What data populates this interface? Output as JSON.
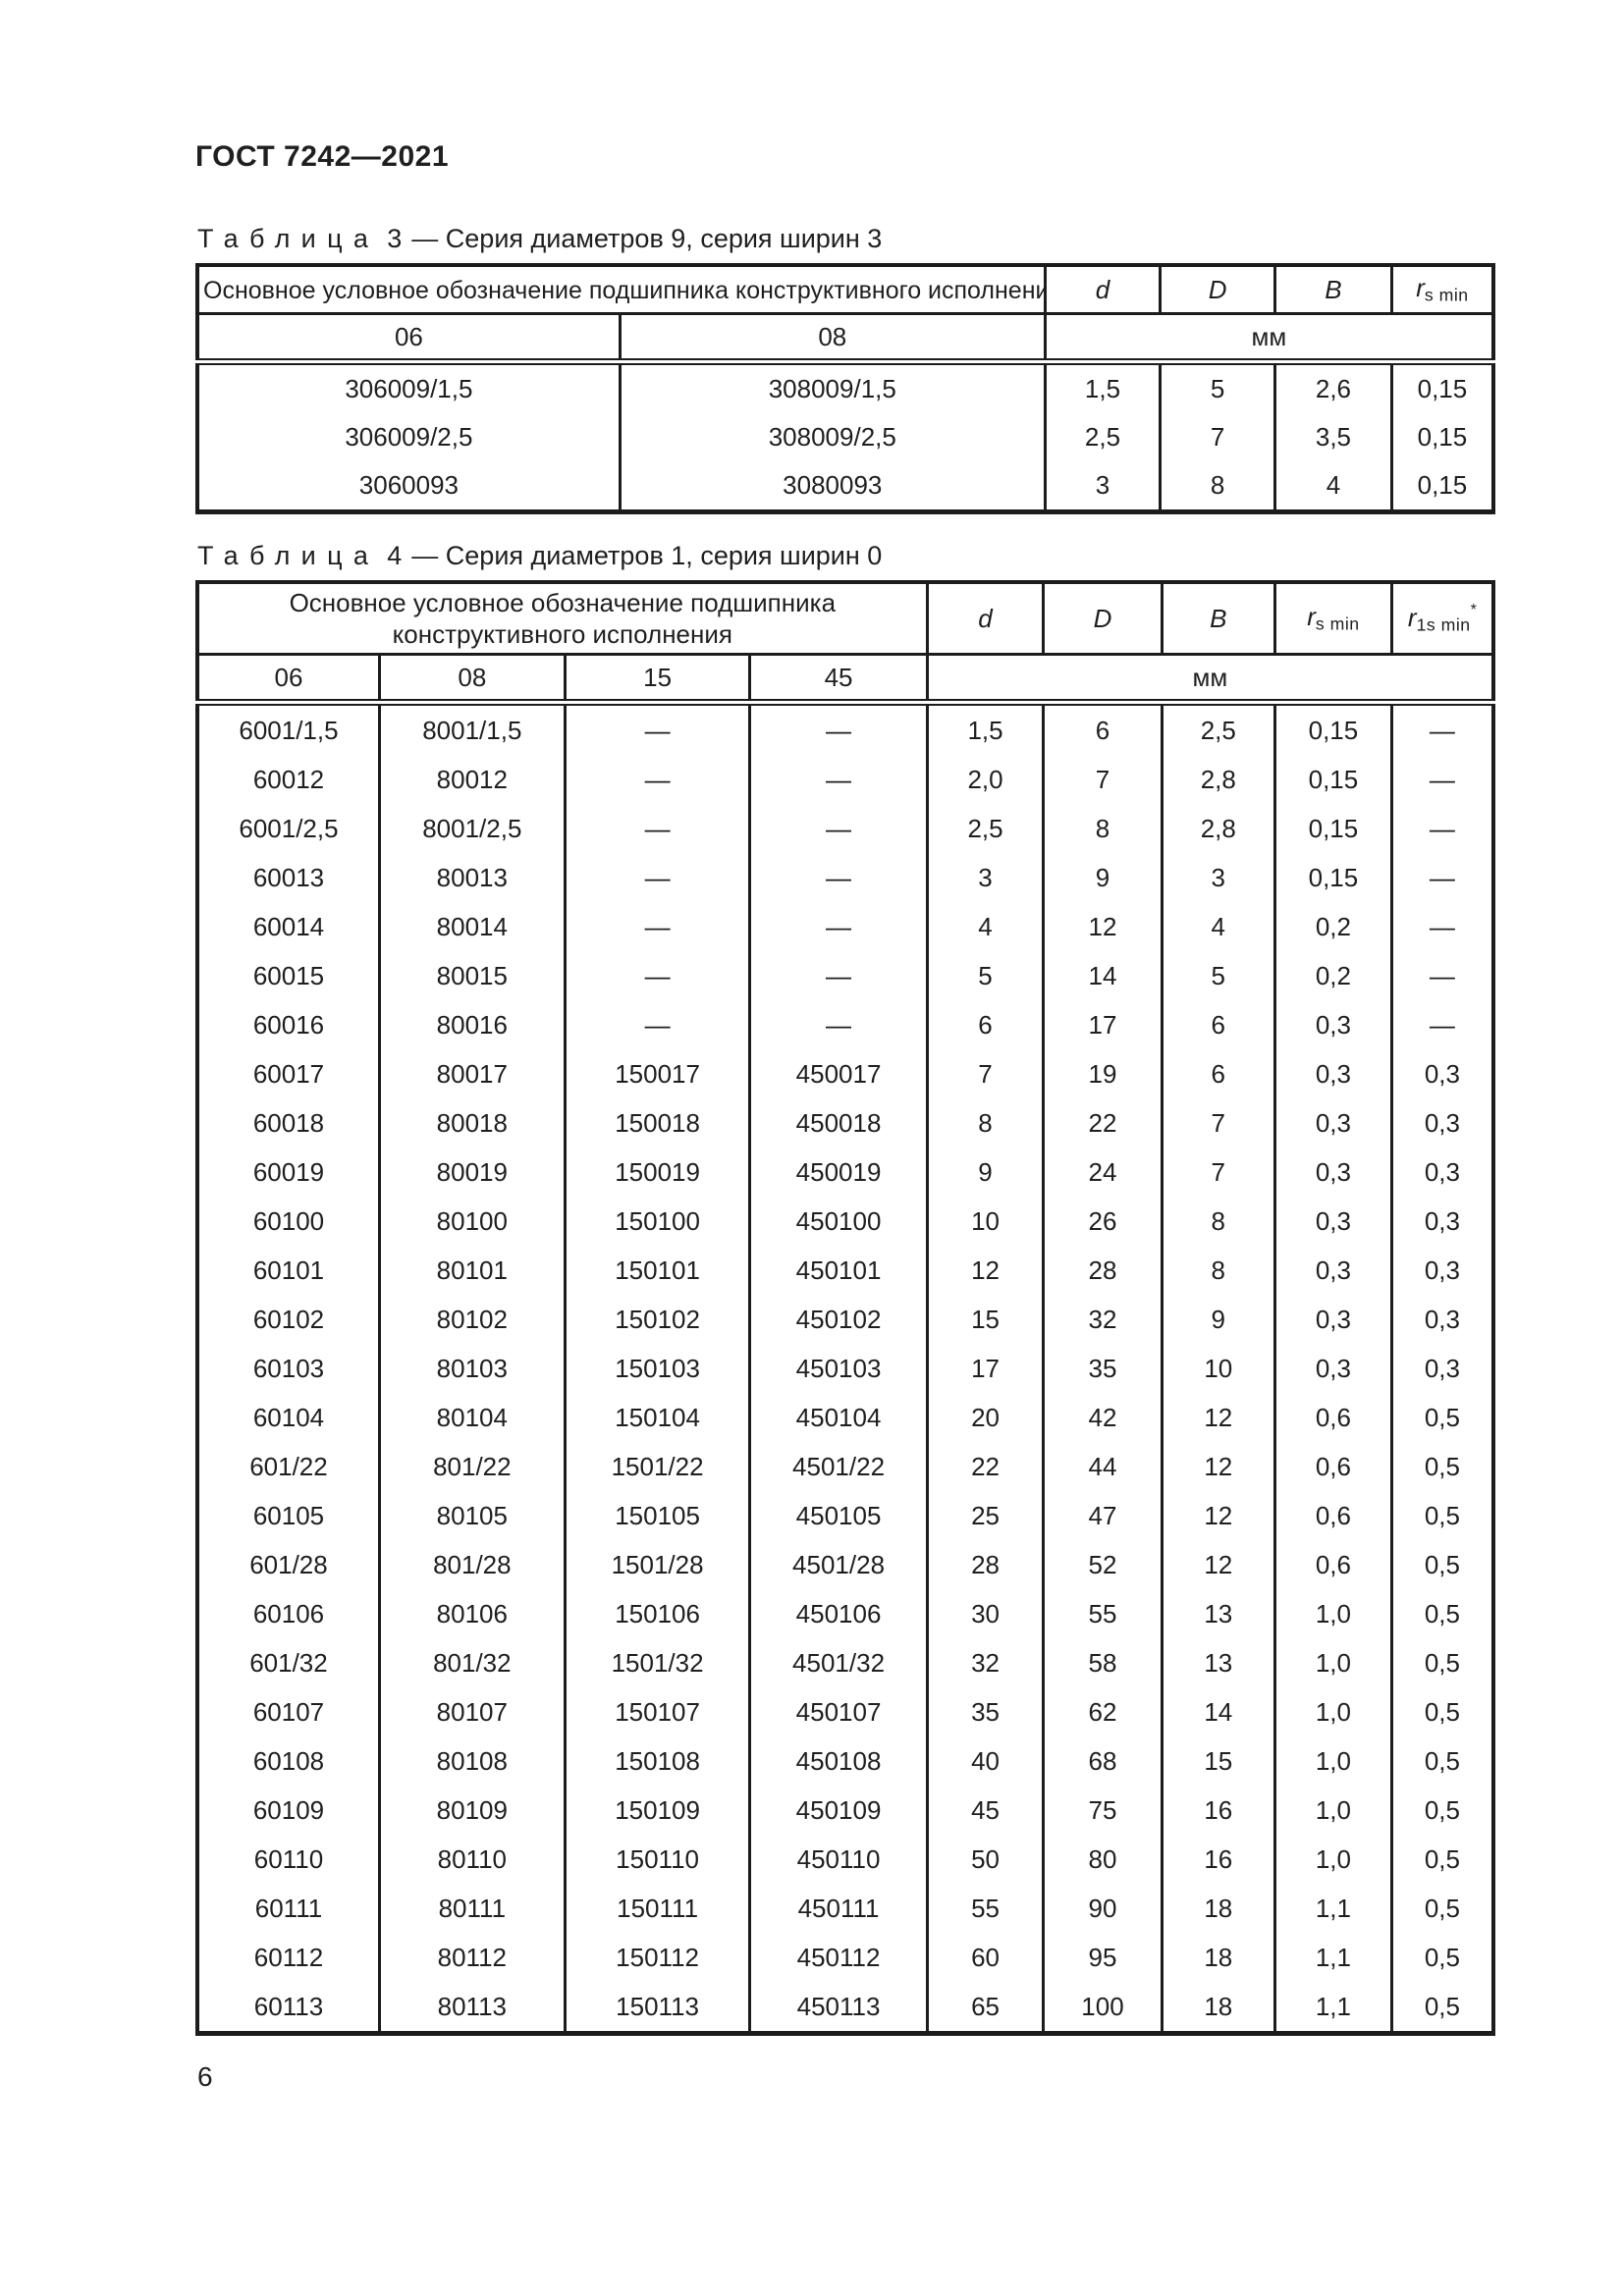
{
  "page": {
    "standard_code": "ГОСТ 7242—2021",
    "page_number": "6"
  },
  "table3": {
    "caption_word": "Таблица",
    "caption_number": "3",
    "caption_text": "— Серия диаметров 9, серия ширин 3",
    "designation_header": "Основное условное обозначение подшипника конструктивного исполнения",
    "series_columns": [
      "06",
      "08"
    ],
    "col_d": "d",
    "col_D": "D",
    "col_B": "B",
    "col_r_base": "r",
    "col_r_sub": "s min",
    "unit": "мм",
    "rows": [
      [
        "306009/1,5",
        "308009/1,5",
        "1,5",
        "5",
        "2,6",
        "0,15"
      ],
      [
        "306009/2,5",
        "308009/2,5",
        "2,5",
        "7",
        "3,5",
        "0,15"
      ],
      [
        "3060093",
        "3080093",
        "3",
        "8",
        "4",
        "0,15"
      ]
    ]
  },
  "table4": {
    "caption_word": "Таблица",
    "caption_number": "4",
    "caption_text": "— Серия диаметров 1, серия ширин 0",
    "designation_header": "Основное условное обозначение подшипника конструктивного исполнения",
    "series_columns": [
      "06",
      "08",
      "15",
      "45"
    ],
    "col_d": "d",
    "col_D": "D",
    "col_B": "B",
    "col_r_base": "r",
    "col_r_sub": "s min",
    "col_r1_base": "r",
    "col_r1_sub": "1s min",
    "col_r1_sup": "*",
    "unit": "мм",
    "rows": [
      [
        "6001/1,5",
        "8001/1,5",
        "—",
        "—",
        "1,5",
        "6",
        "2,5",
        "0,15",
        "—"
      ],
      [
        "60012",
        "80012",
        "—",
        "—",
        "2,0",
        "7",
        "2,8",
        "0,15",
        "—"
      ],
      [
        "6001/2,5",
        "8001/2,5",
        "—",
        "—",
        "2,5",
        "8",
        "2,8",
        "0,15",
        "—"
      ],
      [
        "60013",
        "80013",
        "—",
        "—",
        "3",
        "9",
        "3",
        "0,15",
        "—"
      ],
      [
        "60014",
        "80014",
        "—",
        "—",
        "4",
        "12",
        "4",
        "0,2",
        "—"
      ],
      [
        "60015",
        "80015",
        "—",
        "—",
        "5",
        "14",
        "5",
        "0,2",
        "—"
      ],
      [
        "60016",
        "80016",
        "—",
        "—",
        "6",
        "17",
        "6",
        "0,3",
        "—"
      ],
      [
        "60017",
        "80017",
        "150017",
        "450017",
        "7",
        "19",
        "6",
        "0,3",
        "0,3"
      ],
      [
        "60018",
        "80018",
        "150018",
        "450018",
        "8",
        "22",
        "7",
        "0,3",
        "0,3"
      ],
      [
        "60019",
        "80019",
        "150019",
        "450019",
        "9",
        "24",
        "7",
        "0,3",
        "0,3"
      ],
      [
        "60100",
        "80100",
        "150100",
        "450100",
        "10",
        "26",
        "8",
        "0,3",
        "0,3"
      ],
      [
        "60101",
        "80101",
        "150101",
        "450101",
        "12",
        "28",
        "8",
        "0,3",
        "0,3"
      ],
      [
        "60102",
        "80102",
        "150102",
        "450102",
        "15",
        "32",
        "9",
        "0,3",
        "0,3"
      ],
      [
        "60103",
        "80103",
        "150103",
        "450103",
        "17",
        "35",
        "10",
        "0,3",
        "0,3"
      ],
      [
        "60104",
        "80104",
        "150104",
        "450104",
        "20",
        "42",
        "12",
        "0,6",
        "0,5"
      ],
      [
        "601/22",
        "801/22",
        "1501/22",
        "4501/22",
        "22",
        "44",
        "12",
        "0,6",
        "0,5"
      ],
      [
        "60105",
        "80105",
        "150105",
        "450105",
        "25",
        "47",
        "12",
        "0,6",
        "0,5"
      ],
      [
        "601/28",
        "801/28",
        "1501/28",
        "4501/28",
        "28",
        "52",
        "12",
        "0,6",
        "0,5"
      ],
      [
        "60106",
        "80106",
        "150106",
        "450106",
        "30",
        "55",
        "13",
        "1,0",
        "0,5"
      ],
      [
        "601/32",
        "801/32",
        "1501/32",
        "4501/32",
        "32",
        "58",
        "13",
        "1,0",
        "0,5"
      ],
      [
        "60107",
        "80107",
        "150107",
        "450107",
        "35",
        "62",
        "14",
        "1,0",
        "0,5"
      ],
      [
        "60108",
        "80108",
        "150108",
        "450108",
        "40",
        "68",
        "15",
        "1,0",
        "0,5"
      ],
      [
        "60109",
        "80109",
        "150109",
        "450109",
        "45",
        "75",
        "16",
        "1,0",
        "0,5"
      ],
      [
        "60110",
        "80110",
        "150110",
        "450110",
        "50",
        "80",
        "16",
        "1,0",
        "0,5"
      ],
      [
        "60111",
        "80111",
        "150111",
        "450111",
        "55",
        "90",
        "18",
        "1,1",
        "0,5"
      ],
      [
        "60112",
        "80112",
        "150112",
        "450112",
        "60",
        "95",
        "18",
        "1,1",
        "0,5"
      ],
      [
        "60113",
        "80113",
        "150113",
        "450113",
        "65",
        "100",
        "18",
        "1,1",
        "0,5"
      ]
    ]
  }
}
